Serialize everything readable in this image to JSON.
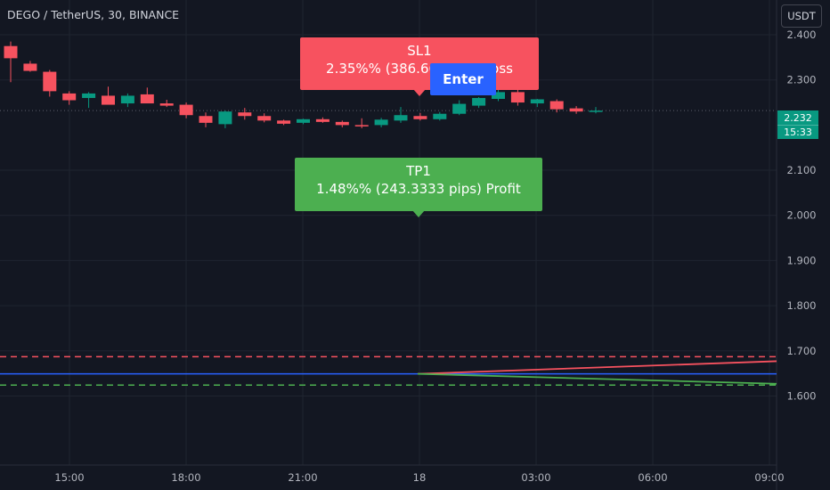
{
  "header": {
    "symbol": "DEGO / TetherUS, 30, BINANCE",
    "currency": "USDT"
  },
  "price_tag": {
    "price": "2.232",
    "countdown": "15:33"
  },
  "labels": {
    "sl": {
      "title": "SL1",
      "text": "2.35%% (386.66",
      "text_tail": "Loss"
    },
    "tp": {
      "title": "TP1",
      "text": "1.48%% (243.3333 pips) Profit"
    },
    "enter": "Enter"
  },
  "colors": {
    "background": "#131722",
    "up": "#089981",
    "down": "#f7525f",
    "sl": "#f7525f",
    "tp": "#4caf50",
    "enter": "#2962ff",
    "entry_line": "#2962ff"
  },
  "chart_data": {
    "type": "candlestick",
    "y_ticks": [
      "2.400",
      "2.300",
      "2.100",
      "2.000",
      "1.900",
      "1.800",
      "1.700",
      "1.600"
    ],
    "x_ticks": [
      "15:00",
      "18:00",
      "21:00",
      "18",
      "03:00",
      "06:00",
      "09:00"
    ],
    "ylim": [
      1.447,
      2.477
    ],
    "last_price": 2.232,
    "candles": [
      {
        "o": 2.375,
        "h": 2.385,
        "l": 2.295,
        "c": 2.348
      },
      {
        "o": 2.336,
        "h": 2.342,
        "l": 2.318,
        "c": 2.32
      },
      {
        "o": 2.318,
        "h": 2.322,
        "l": 2.263,
        "c": 2.275
      },
      {
        "o": 2.27,
        "h": 2.275,
        "l": 2.245,
        "c": 2.255
      },
      {
        "o": 2.26,
        "h": 2.273,
        "l": 2.238,
        "c": 2.27
      },
      {
        "o": 2.265,
        "h": 2.285,
        "l": 2.248,
        "c": 2.245
      },
      {
        "o": 2.248,
        "h": 2.27,
        "l": 2.24,
        "c": 2.265
      },
      {
        "o": 2.268,
        "h": 2.283,
        "l": 2.25,
        "c": 2.248
      },
      {
        "o": 2.248,
        "h": 2.256,
        "l": 2.24,
        "c": 2.243
      },
      {
        "o": 2.245,
        "h": 2.25,
        "l": 2.215,
        "c": 2.222
      },
      {
        "o": 2.22,
        "h": 2.228,
        "l": 2.195,
        "c": 2.205
      },
      {
        "o": 2.202,
        "h": 2.232,
        "l": 2.193,
        "c": 2.23
      },
      {
        "o": 2.228,
        "h": 2.238,
        "l": 2.212,
        "c": 2.22
      },
      {
        "o": 2.22,
        "h": 2.226,
        "l": 2.206,
        "c": 2.21
      },
      {
        "o": 2.21,
        "h": 2.212,
        "l": 2.2,
        "c": 2.203
      },
      {
        "o": 2.205,
        "h": 2.214,
        "l": 2.202,
        "c": 2.213
      },
      {
        "o": 2.213,
        "h": 2.217,
        "l": 2.205,
        "c": 2.207
      },
      {
        "o": 2.207,
        "h": 2.21,
        "l": 2.195,
        "c": 2.2
      },
      {
        "o": 2.2,
        "h": 2.215,
        "l": 2.193,
        "c": 2.197
      },
      {
        "o": 2.2,
        "h": 2.216,
        "l": 2.195,
        "c": 2.212
      },
      {
        "o": 2.21,
        "h": 2.24,
        "l": 2.205,
        "c": 2.222
      },
      {
        "o": 2.22,
        "h": 2.227,
        "l": 2.21,
        "c": 2.213
      },
      {
        "o": 2.213,
        "h": 2.229,
        "l": 2.21,
        "c": 2.225
      },
      {
        "o": 2.225,
        "h": 2.255,
        "l": 2.222,
        "c": 2.247
      },
      {
        "o": 2.243,
        "h": 2.262,
        "l": 2.238,
        "c": 2.26
      },
      {
        "o": 2.258,
        "h": 2.28,
        "l": 2.253,
        "c": 2.273
      },
      {
        "o": 2.273,
        "h": 2.283,
        "l": 2.243,
        "c": 2.25
      },
      {
        "o": 2.248,
        "h": 2.258,
        "l": 2.24,
        "c": 2.257
      },
      {
        "o": 2.253,
        "h": 2.257,
        "l": 2.228,
        "c": 2.235
      },
      {
        "o": 2.237,
        "h": 2.242,
        "l": 2.225,
        "c": 2.23
      },
      {
        "o": 2.23,
        "h": 2.24,
        "l": 2.226,
        "c": 2.232
      }
    ],
    "levels": {
      "entry": 1.649,
      "stop_loss": 1.687,
      "take_profit": 1.624
    },
    "diverging_lines": [
      {
        "name": "upper",
        "from": 1.649,
        "to": 1.677
      },
      {
        "name": "lower",
        "from": 1.649,
        "to": 1.627
      }
    ]
  }
}
